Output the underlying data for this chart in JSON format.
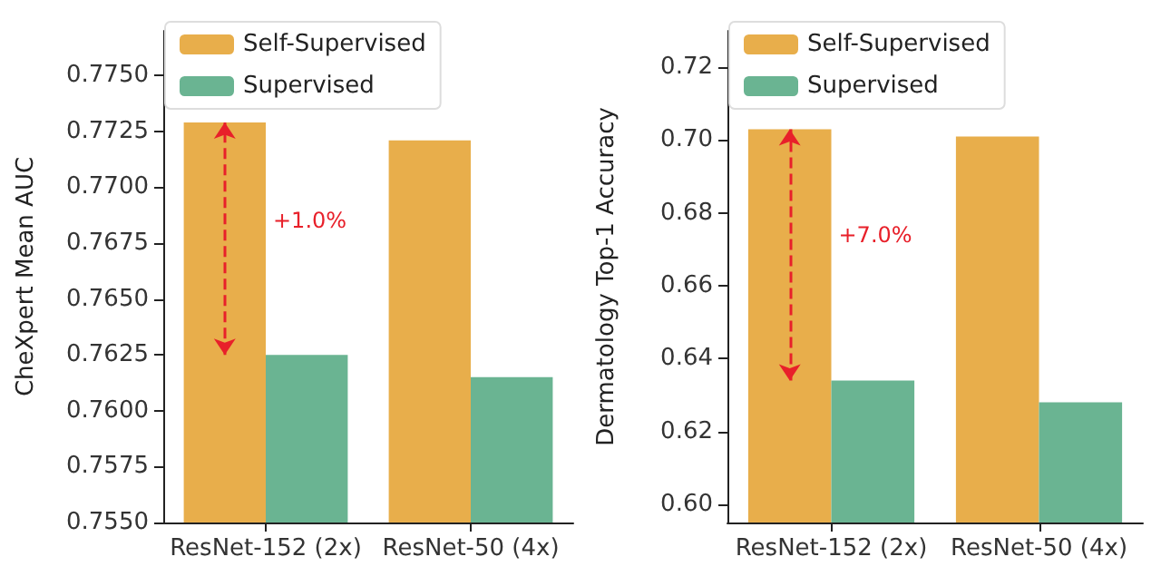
{
  "chart_data": [
    {
      "type": "bar",
      "categories": [
        "ResNet-152 (2x)",
        "ResNet-50 (4x)"
      ],
      "ylabel": "CheXpert Mean AUC",
      "series": [
        {
          "name": "Self-Supervised",
          "color": "#e8ae4b",
          "values": [
            0.7729,
            0.7721
          ]
        },
        {
          "name": "Supervised",
          "color": "#6ab492",
          "values": [
            0.7625,
            0.7615
          ]
        }
      ],
      "ylim": [
        0.755,
        0.777
      ],
      "yticks": [
        {
          "value": 0.755,
          "label": "0.7550"
        },
        {
          "value": 0.7575,
          "label": "0.7575"
        },
        {
          "value": 0.76,
          "label": "0.7600"
        },
        {
          "value": 0.7625,
          "label": "0.7625"
        },
        {
          "value": 0.765,
          "label": "0.7650"
        },
        {
          "value": 0.7675,
          "label": "0.7675"
        },
        {
          "value": 0.77,
          "label": "0.7700"
        },
        {
          "value": 0.7725,
          "label": "0.7725"
        },
        {
          "value": 0.775,
          "label": "0.7750"
        }
      ],
      "annotations": [
        {
          "text": "+1.0%",
          "x": "ResNet-152 (2x)",
          "y": 0.7685
        }
      ],
      "grid": false,
      "legend": "top left"
    },
    {
      "type": "bar",
      "categories": [
        "ResNet-152 (2x)",
        "ResNet-50 (4x)"
      ],
      "ylabel": "Dermatology Top-1 Accuracy",
      "series": [
        {
          "name": "Self-Supervised",
          "color": "#e8ae4b",
          "values": [
            0.703,
            0.701
          ]
        },
        {
          "name": "Supervised",
          "color": "#6ab492",
          "values": [
            0.634,
            0.628
          ]
        }
      ],
      "ylim": [
        0.595,
        0.73
      ],
      "yticks": [
        {
          "value": 0.6,
          "label": "0.60"
        },
        {
          "value": 0.62,
          "label": "0.62"
        },
        {
          "value": 0.64,
          "label": "0.64"
        },
        {
          "value": 0.66,
          "label": "0.66"
        },
        {
          "value": 0.68,
          "label": "0.68"
        },
        {
          "value": 0.7,
          "label": "0.70"
        },
        {
          "value": 0.72,
          "label": "0.72"
        }
      ],
      "annotations": [
        {
          "text": "+7.0%",
          "x": "ResNet-152 (2x)",
          "y": 0.674
        }
      ],
      "grid": false,
      "legend": "top left"
    }
  ]
}
